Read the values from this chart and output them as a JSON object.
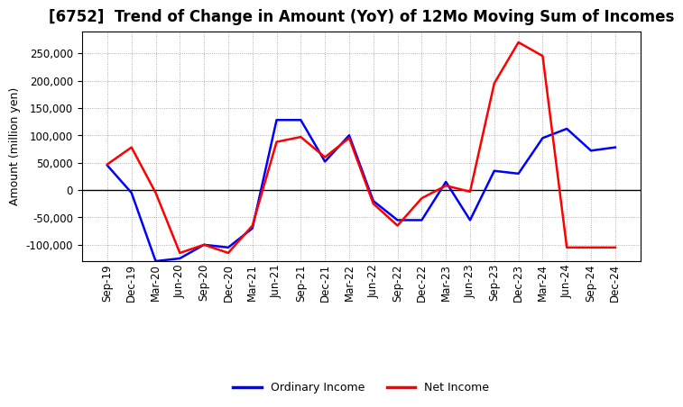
{
  "title": "[6752]  Trend of Change in Amount (YoY) of 12Mo Moving Sum of Incomes",
  "ylabel": "Amount (million yen)",
  "x_labels": [
    "Sep-19",
    "Dec-19",
    "Mar-20",
    "Jun-20",
    "Sep-20",
    "Dec-20",
    "Mar-21",
    "Jun-21",
    "Sep-21",
    "Dec-21",
    "Mar-22",
    "Jun-22",
    "Sep-22",
    "Dec-22",
    "Mar-23",
    "Jun-23",
    "Sep-23",
    "Dec-23",
    "Mar-24",
    "Jun-24",
    "Sep-24",
    "Dec-24"
  ],
  "ordinary_income": [
    45000,
    -5000,
    -130000,
    -125000,
    -100000,
    -105000,
    -70000,
    128000,
    128000,
    52000,
    100000,
    -20000,
    -55000,
    -55000,
    15000,
    -55000,
    35000,
    30000,
    95000,
    112000,
    72000,
    78000
  ],
  "net_income": [
    47000,
    78000,
    -5000,
    -115000,
    -100000,
    -115000,
    -65000,
    88000,
    97000,
    60000,
    95000,
    -25000,
    -65000,
    -15000,
    8000,
    -3000,
    195000,
    270000,
    245000,
    -105000,
    -105000,
    -105000
  ],
  "ordinary_color": "#0000ff",
  "net_color": "#ff0000",
  "ylim": [
    -130000,
    290000
  ],
  "yticks": [
    -100000,
    -50000,
    0,
    50000,
    100000,
    150000,
    200000,
    250000
  ],
  "background_color": "#ffffff",
  "grid_color": "#999999",
  "title_fontsize": 12,
  "axis_label_fontsize": 9,
  "tick_fontsize": 8.5,
  "legend_fontsize": 9,
  "line_width": 1.8
}
